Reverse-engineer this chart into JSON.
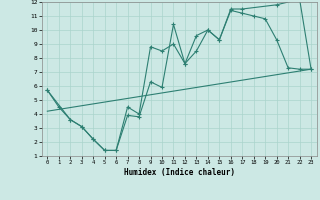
{
  "xlabel": "Humidex (Indice chaleur)",
  "bg_color": "#cce8e4",
  "grid_color": "#aad4cc",
  "line_color": "#2d7f72",
  "xlim": [
    -0.5,
    23.5
  ],
  "ylim": [
    1,
    12
  ],
  "xticks": [
    0,
    1,
    2,
    3,
    4,
    5,
    6,
    7,
    8,
    9,
    10,
    11,
    12,
    13,
    14,
    15,
    16,
    17,
    18,
    19,
    20,
    21,
    22,
    23
  ],
  "yticks": [
    1,
    2,
    3,
    4,
    5,
    6,
    7,
    8,
    9,
    10,
    11,
    12
  ],
  "line1_x": [
    0,
    1,
    2,
    3,
    4,
    5,
    6,
    7,
    8,
    9,
    10,
    11,
    12,
    13,
    14,
    15,
    16,
    17,
    18,
    19,
    20,
    21,
    22,
    23
  ],
  "line1_y": [
    5.7,
    4.5,
    3.6,
    3.1,
    2.2,
    1.4,
    1.4,
    3.9,
    3.8,
    6.3,
    5.9,
    10.4,
    7.6,
    9.6,
    10.0,
    9.3,
    11.4,
    11.2,
    11.0,
    10.8,
    9.3,
    7.3,
    7.2,
    7.2
  ],
  "line2_x": [
    0,
    2,
    3,
    4,
    5,
    6,
    7,
    8,
    9,
    10,
    11,
    12,
    13,
    14,
    15,
    16,
    17,
    20,
    22,
    23
  ],
  "line2_y": [
    5.7,
    3.6,
    3.1,
    2.2,
    1.4,
    1.4,
    4.5,
    4.0,
    8.8,
    8.5,
    9.0,
    7.6,
    8.5,
    10.0,
    9.3,
    11.5,
    11.5,
    11.8,
    12.2,
    7.2
  ],
  "line3_x": [
    0,
    23
  ],
  "line3_y": [
    4.2,
    7.2
  ]
}
